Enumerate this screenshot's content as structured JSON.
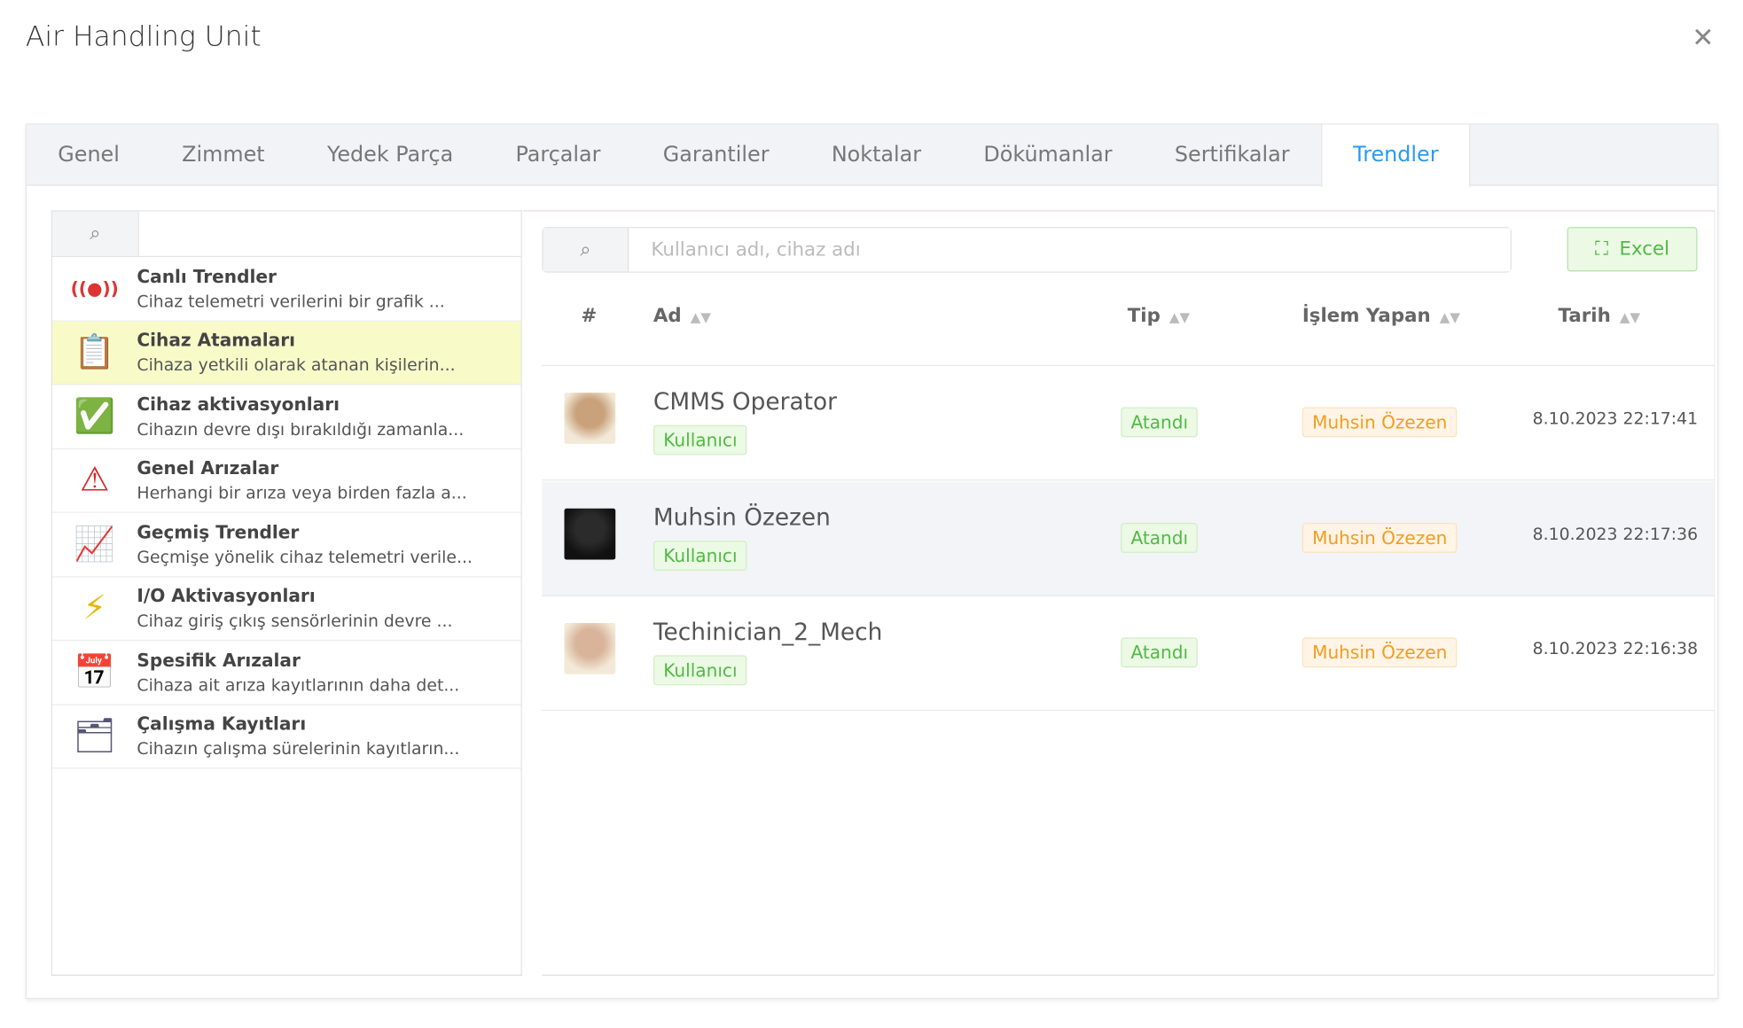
{
  "title": "Air Handling Unit",
  "tabs": [
    "Genel",
    "Zimmet",
    "Yedek Parça",
    "Parçalar",
    "Garantiler",
    "Noktalar",
    "Dökümanlar",
    "Sertifikalar",
    "Trendler"
  ],
  "active_tab": "Trendler",
  "sidebar": {
    "items": [
      {
        "title": "Canlı Trendler",
        "desc": "Cihaz telemetri verilerini bir grafik ...",
        "icon": "live-signal-icon"
      },
      {
        "title": "Cihaz Atamaları",
        "desc": "Cihaza yetkili olarak atanan kişilerin...",
        "icon": "assignment-document-icon"
      },
      {
        "title": "Cihaz aktivasyonları",
        "desc": "Cihazın devre dışı bırakıldığı zamanla...",
        "icon": "check-circle-icon"
      },
      {
        "title": "Genel Arızalar",
        "desc": "Herhangi bir arıza veya birden fazla a...",
        "icon": "warning-triangle-icon"
      },
      {
        "title": "Geçmiş Trendler",
        "desc": "Geçmişe yönelik cihaz telemetri verile...",
        "icon": "history-chart-icon"
      },
      {
        "title": "I/O Aktivasyonları",
        "desc": "Cihaz giriş çıkış sensörlerinin devre ...",
        "icon": "lightning-icon"
      },
      {
        "title": "Spesifik Arızalar",
        "desc": "Cihaza ait arıza kayıtlarının daha det...",
        "icon": "calendar-warning-icon"
      },
      {
        "title": "Çalışma Kayıtları",
        "desc": "Cihazın çalışma sürelerinin kayıtların...",
        "icon": "folder-gear-icon"
      }
    ]
  },
  "search": {
    "placeholder": "Kullanıcı adı, cihaz adı"
  },
  "excel_label": "Excel",
  "columns": {
    "num": "#",
    "ad": "Ad",
    "tip": "Tip",
    "islem": "İşlem Yapan",
    "tarih": "Tarih"
  },
  "rows": [
    {
      "name": "CMMS Operator",
      "role": "Kullanıcı",
      "tip": "Atandı",
      "by": "Muhsin Özezen",
      "date": "8.10.2023 22:17:41"
    },
    {
      "name": "Muhsin Özezen",
      "role": "Kullanıcı",
      "tip": "Atandı",
      "by": "Muhsin Özezen",
      "date": "8.10.2023 22:17:36"
    },
    {
      "name": "Techinician_2_Mech",
      "role": "Kullanıcı",
      "tip": "Atandı",
      "by": "Muhsin Özezen",
      "date": "8.10.2023 22:16:38"
    }
  ],
  "colors": {
    "accent": "#2c9af0",
    "success": "#52b944",
    "warning": "#f39c1f",
    "selected": "#f8fbc8"
  }
}
